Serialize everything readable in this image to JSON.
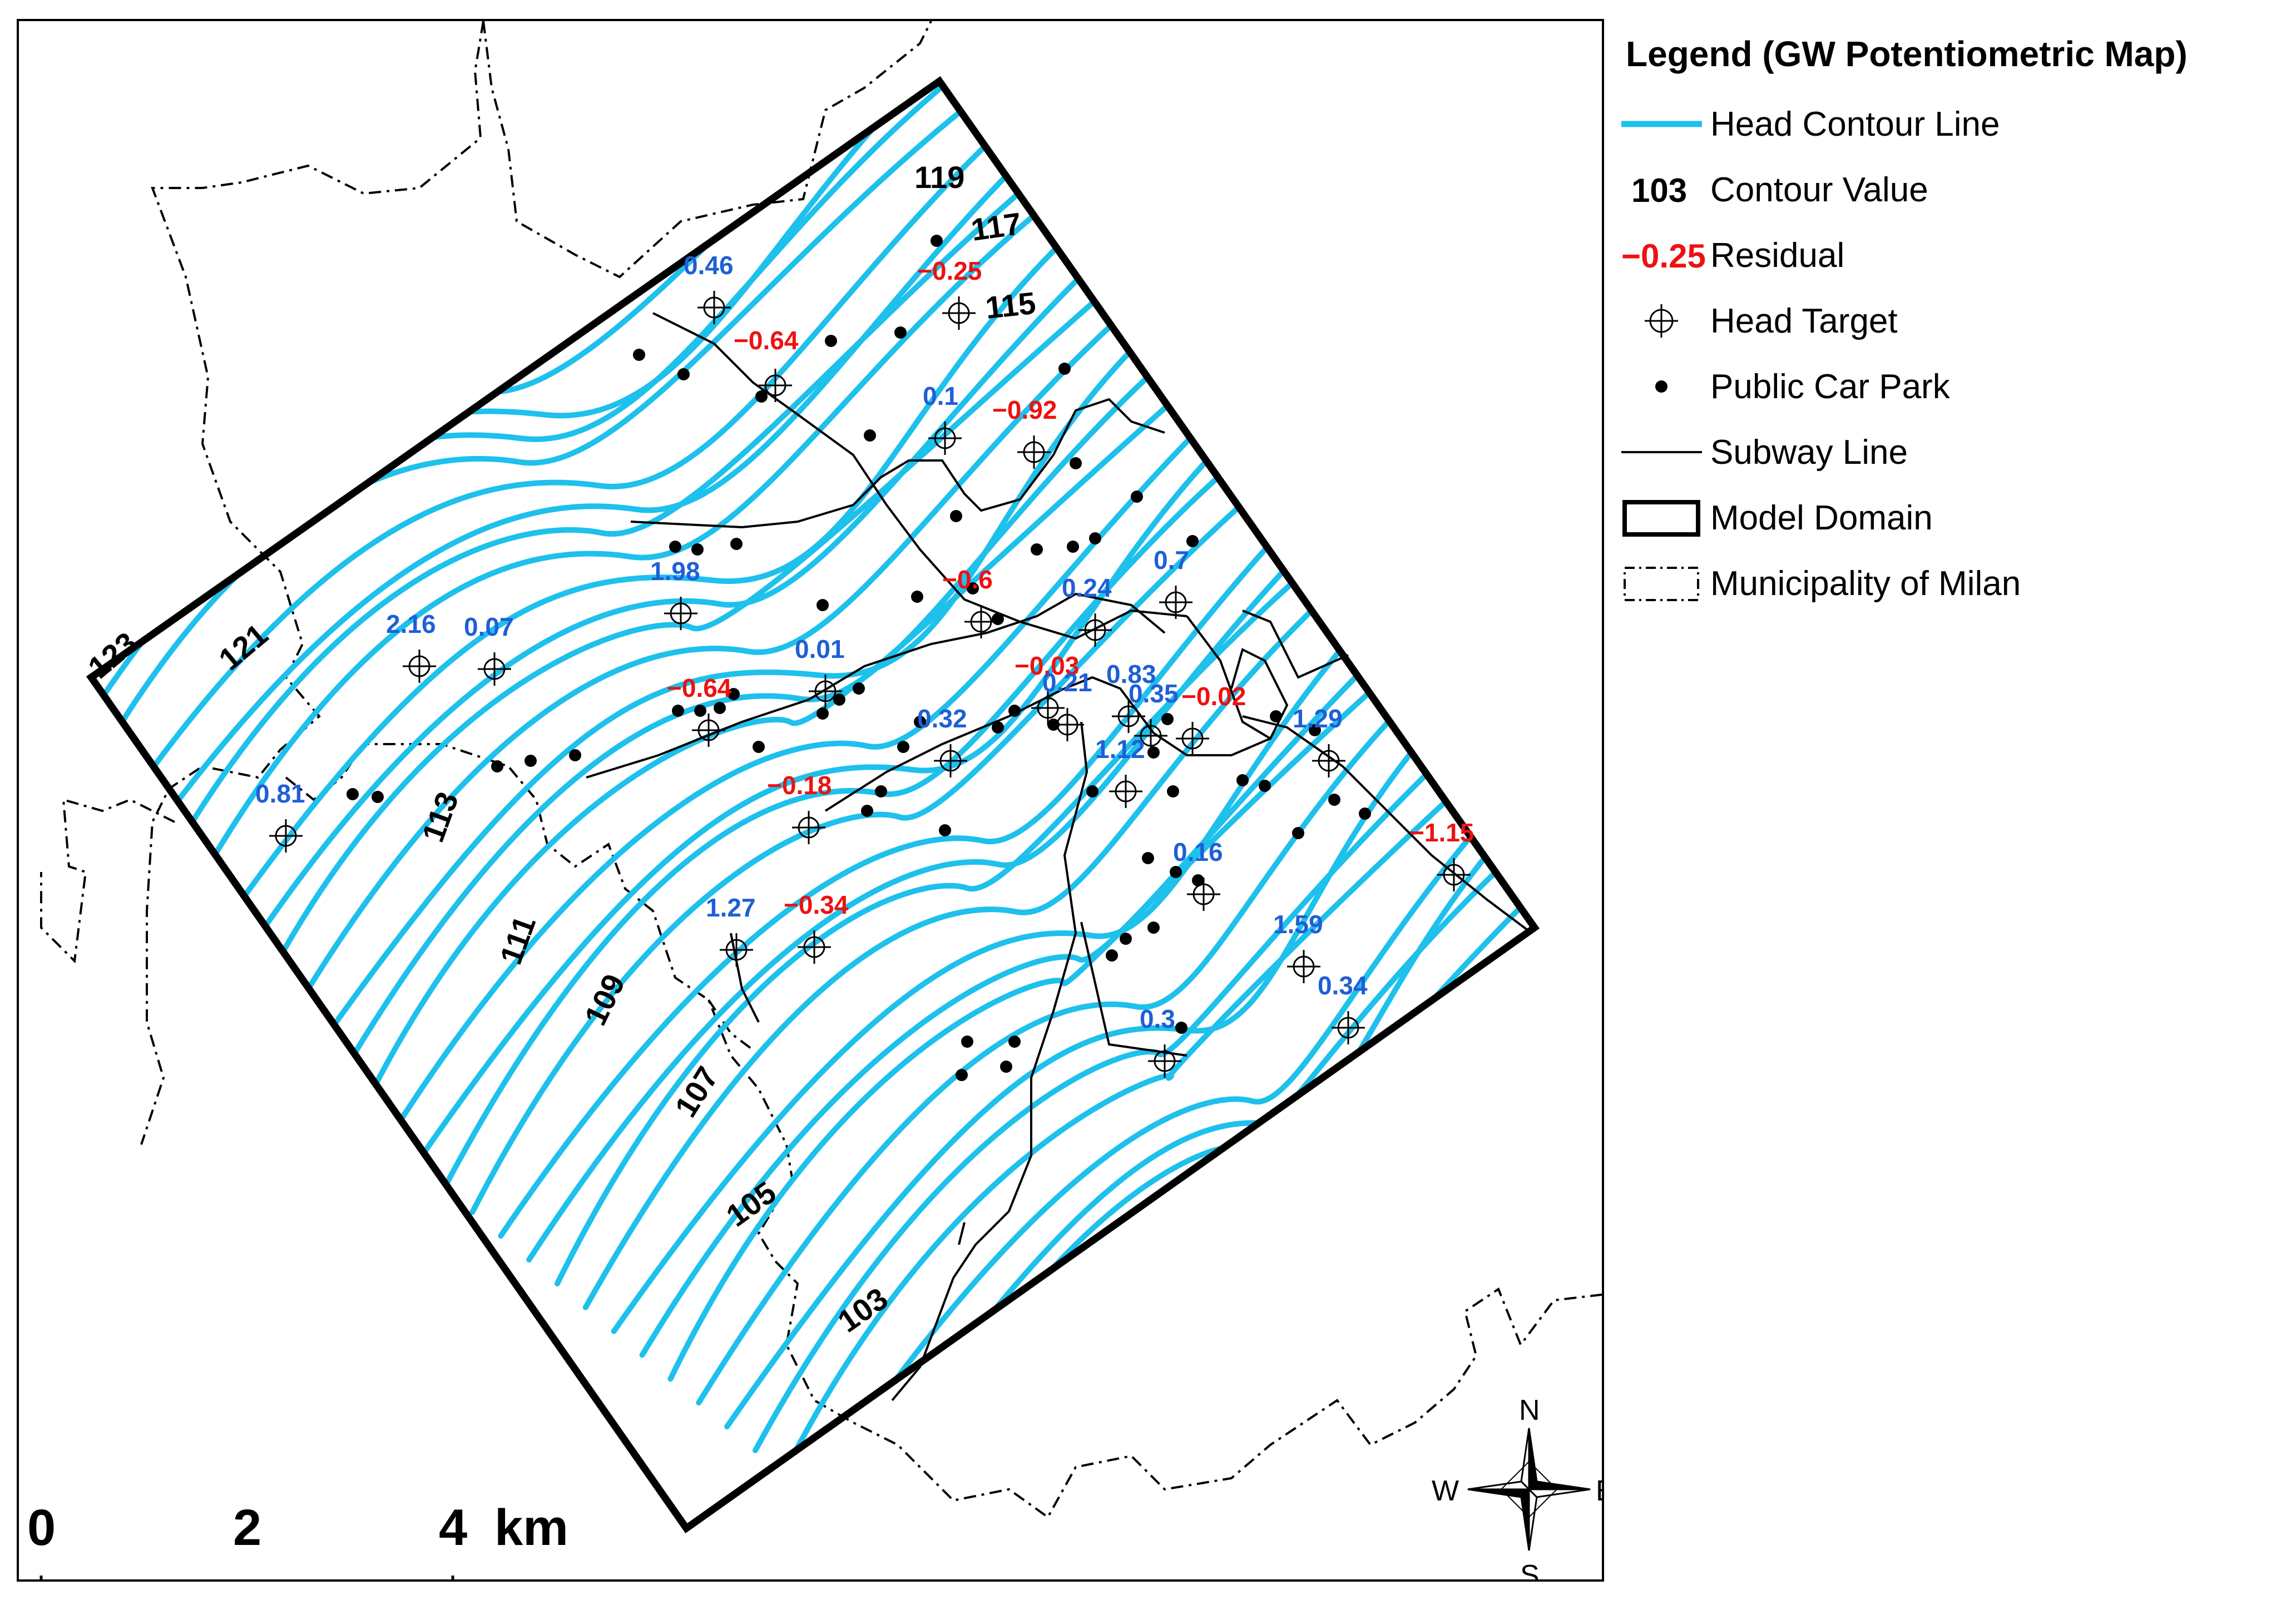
{
  "legend": {
    "title": "Legend (GW Potentiometric Map)",
    "items": [
      {
        "label": "Head Contour Line",
        "symbol": "contour-line"
      },
      {
        "label": "Contour Value",
        "symbol": "contour-value",
        "sample": "103"
      },
      {
        "label": "Residual",
        "symbol": "residual",
        "sample": "−0.25"
      },
      {
        "label": "Head Target",
        "symbol": "head-target"
      },
      {
        "label": "Public Car Park",
        "symbol": "dot"
      },
      {
        "label": "Subway Line",
        "symbol": "thin-line"
      },
      {
        "label": "Model Domain",
        "symbol": "thick-box"
      },
      {
        "label": "Municipality of Milan",
        "symbol": "dashed-box"
      }
    ]
  },
  "colors": {
    "contour": "#1ec0ec",
    "residual_positive": "#1e5fd6",
    "residual_negative": "#ee1111",
    "line": "#000000"
  },
  "contour_labels": [
    "123",
    "121",
    "119",
    "117",
    "115",
    "113",
    "111",
    "109",
    "107",
    "105",
    "103"
  ],
  "residuals": [
    {
      "value": "0.46",
      "sign": "positive"
    },
    {
      "value": "−0.25",
      "sign": "negative"
    },
    {
      "value": "−0.64",
      "sign": "negative"
    },
    {
      "value": "0.1",
      "sign": "positive"
    },
    {
      "value": "−0.92",
      "sign": "negative"
    },
    {
      "value": "1.98",
      "sign": "positive"
    },
    {
      "value": "2.16",
      "sign": "positive"
    },
    {
      "value": "0.07",
      "sign": "positive"
    },
    {
      "value": "0.7",
      "sign": "positive"
    },
    {
      "value": "−0.6",
      "sign": "negative"
    },
    {
      "value": "0.24",
      "sign": "positive"
    },
    {
      "value": "0.01",
      "sign": "positive"
    },
    {
      "value": "−0.03",
      "sign": "negative"
    },
    {
      "value": "0.83",
      "sign": "positive"
    },
    {
      "value": "−0.64",
      "sign": "negative"
    },
    {
      "value": "0.32",
      "sign": "positive"
    },
    {
      "value": "0.21",
      "sign": "positive"
    },
    {
      "value": "0.35",
      "sign": "positive"
    },
    {
      "value": "−0.02",
      "sign": "negative"
    },
    {
      "value": "1.29",
      "sign": "positive"
    },
    {
      "value": "1.12",
      "sign": "positive"
    },
    {
      "value": "0.81",
      "sign": "positive"
    },
    {
      "value": "−0.18",
      "sign": "negative"
    },
    {
      "value": "−1.15",
      "sign": "negative"
    },
    {
      "value": "0.16",
      "sign": "positive"
    },
    {
      "value": "1.27",
      "sign": "positive"
    },
    {
      "value": "−0.34",
      "sign": "negative"
    },
    {
      "value": "1.59",
      "sign": "positive"
    },
    {
      "value": "0.34",
      "sign": "positive"
    },
    {
      "value": "0.3",
      "sign": "positive"
    }
  ],
  "scale_bar": {
    "ticks": [
      "0",
      "2",
      "4"
    ],
    "unit": "km"
  },
  "north_arrow": {
    "n": "N",
    "s": "S",
    "e": "E",
    "w": "W"
  }
}
